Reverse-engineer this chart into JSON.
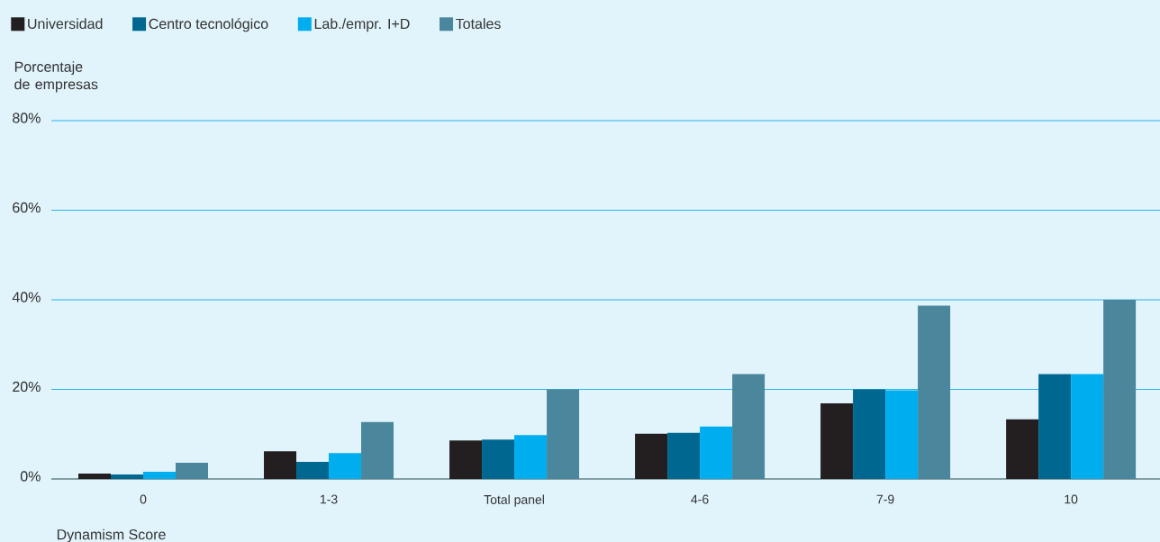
{
  "chart_data": {
    "type": "bar",
    "ylabel": "Porcentaje de empresas",
    "xlabel": "Dynamism Score",
    "categories": [
      "0",
      "1-3",
      "Total panel",
      "4-6",
      "7-9",
      "10"
    ],
    "series": [
      {
        "name": "Universidad",
        "color": "#231f20",
        "values": [
          1.2,
          6.2,
          8.6,
          10.1,
          16.9,
          13.3
        ]
      },
      {
        "name": "Centro tecnológico",
        "color": "#006890",
        "values": [
          1.0,
          3.8,
          8.8,
          10.3,
          20,
          23.4
        ]
      },
      {
        "name": "Lab./empr. I+D",
        "color": "#00aeef",
        "values": [
          1.6,
          5.8,
          9.8,
          11.7,
          19.8,
          23.4
        ]
      },
      {
        "name": "Totales",
        "color": "#4b879c",
        "values": [
          3.6,
          12.7,
          20,
          23.4,
          38.7,
          40
        ]
      }
    ],
    "ylim": [
      0,
      80
    ],
    "yticks": [
      {
        "value": 0,
        "label": "0%"
      },
      {
        "value": 20,
        "label": "20%"
      },
      {
        "value": 40,
        "label": "40%"
      },
      {
        "value": 60,
        "label": "60%"
      },
      {
        "value": 80,
        "label": "80%"
      }
    ],
    "grid": "y",
    "legend": "top left"
  }
}
